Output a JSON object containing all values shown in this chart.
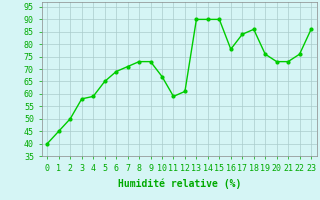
{
  "x": [
    0,
    1,
    2,
    3,
    4,
    5,
    6,
    7,
    8,
    9,
    10,
    11,
    12,
    13,
    14,
    15,
    16,
    17,
    18,
    19,
    20,
    21,
    22,
    23
  ],
  "y": [
    40,
    45,
    50,
    58,
    59,
    65,
    69,
    71,
    73,
    73,
    67,
    59,
    61,
    90,
    90,
    90,
    78,
    84,
    86,
    76,
    73,
    73,
    76,
    86
  ],
  "line_color": "#00cc00",
  "marker": "o",
  "marker_size": 2,
  "bg_color": "#d5f5f5",
  "grid_color": "#aacccc",
  "xlabel": "Humidité relative (%)",
  "xlabel_color": "#00aa00",
  "xlabel_fontsize": 7,
  "ylim": [
    35,
    97
  ],
  "xlim": [
    -0.5,
    23.5
  ],
  "yticks": [
    35,
    40,
    45,
    50,
    55,
    60,
    65,
    70,
    75,
    80,
    85,
    90,
    95
  ],
  "xticks": [
    0,
    1,
    2,
    3,
    4,
    5,
    6,
    7,
    8,
    9,
    10,
    11,
    12,
    13,
    14,
    15,
    16,
    17,
    18,
    19,
    20,
    21,
    22,
    23
  ],
  "tick_fontsize": 6,
  "line_width": 1.0
}
